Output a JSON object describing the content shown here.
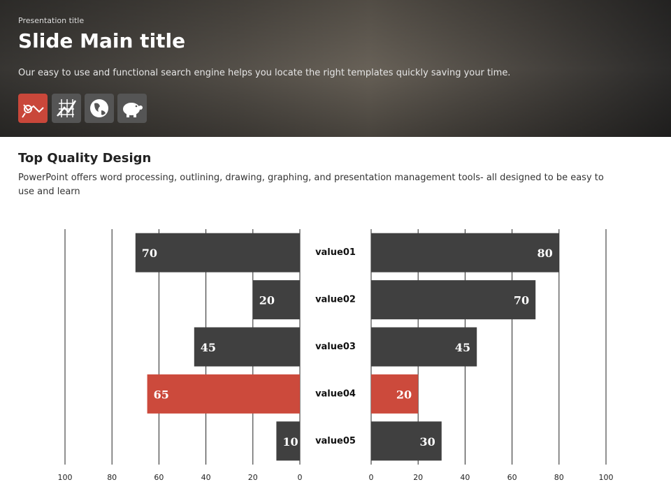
{
  "header": {
    "presentation_title": "Presentation title",
    "title": "Slide Main title",
    "subtitle": "Our easy to use and functional search engine helps you locate the right templates quickly saving your time."
  },
  "section": {
    "heading": "Top Quality Design",
    "body": "PowerPoint offers word processing, outlining, drawing, graphing, and presentation management tools- all designed to be easy to use and learn"
  },
  "chart_data": {
    "type": "butterfly",
    "categories": [
      "value01",
      "value02",
      "value03",
      "value04",
      "value05"
    ],
    "series": [
      {
        "values": [
          70,
          20,
          45,
          65,
          10
        ],
        "colors": [
          "#404040",
          "#404040",
          "#404040",
          "#cc4a3c",
          "#404040"
        ]
      },
      {
        "values": [
          80,
          70,
          45,
          20,
          30
        ],
        "colors": [
          "#404040",
          "#404040",
          "#404040",
          "#cc4a3c",
          "#404040"
        ]
      }
    ],
    "xlim": [
      0,
      100
    ],
    "xticks": [
      0,
      20,
      40,
      60,
      80,
      100
    ],
    "grid": true
  }
}
